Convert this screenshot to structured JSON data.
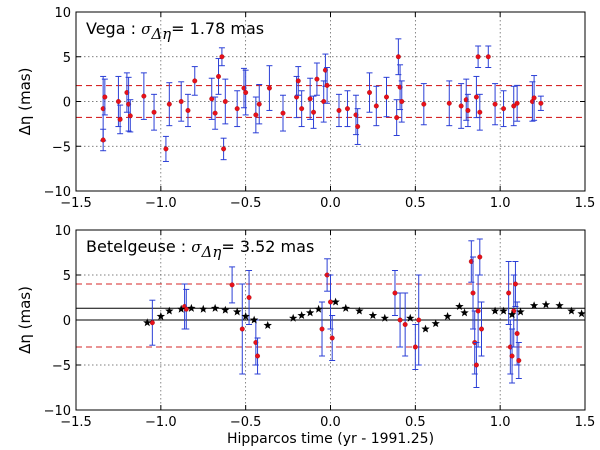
{
  "chart_data": [
    {
      "type": "scatter",
      "panel": "top",
      "annotation": {
        "name": "Vega",
        "colon": ":",
        "sigma": "σ",
        "sub": "Δη",
        "eq": "=",
        "value": "1.78 mas"
      },
      "ylabel": "Δη (mas)",
      "xlabel": "",
      "xlim": [
        -1.5,
        1.5
      ],
      "ylim": [
        -10,
        10
      ],
      "xticks": [
        -1.5,
        -1.0,
        -0.5,
        0.0,
        0.5,
        1.0,
        1.5
      ],
      "yticks": [
        -10,
        -5,
        0,
        5,
        10
      ],
      "xtick_labels": [
        "−1.5",
        "−1.0",
        "−0.5",
        "0.0",
        "0.5",
        "1.0",
        "1.5"
      ],
      "ytick_labels": [
        "−10",
        "−5",
        "0",
        "5",
        "10"
      ],
      "grid": true,
      "hlines_dashed_red": [
        1.78,
        -1.78
      ],
      "hlines_solid_black": [],
      "points": [
        {
          "x": -1.34,
          "y": -0.8,
          "err": 3.6
        },
        {
          "x": -1.34,
          "y": -4.3,
          "err": 1.2
        },
        {
          "x": -1.33,
          "y": 0.5,
          "err": 2.0
        },
        {
          "x": -1.25,
          "y": 0.0,
          "err": 2.8
        },
        {
          "x": -1.24,
          "y": -2.0,
          "err": 1.6
        },
        {
          "x": -1.2,
          "y": 1.0,
          "err": 2.2
        },
        {
          "x": -1.19,
          "y": -0.3,
          "err": 3.0
        },
        {
          "x": -1.18,
          "y": -1.6,
          "err": 1.8
        },
        {
          "x": -1.1,
          "y": 0.6,
          "err": 2.6
        },
        {
          "x": -1.04,
          "y": -1.2,
          "err": 2.0
        },
        {
          "x": -0.97,
          "y": -5.3,
          "err": 1.4
        },
        {
          "x": -0.95,
          "y": -0.3,
          "err": 2.4
        },
        {
          "x": -0.88,
          "y": 0.0,
          "err": 2.2
        },
        {
          "x": -0.84,
          "y": -1.0,
          "err": 1.8
        },
        {
          "x": -0.8,
          "y": 2.3,
          "err": 1.6
        },
        {
          "x": -0.7,
          "y": 0.3,
          "err": 2.3
        },
        {
          "x": -0.68,
          "y": -1.3,
          "err": 1.8
        },
        {
          "x": -0.66,
          "y": 2.8,
          "err": 2.0
        },
        {
          "x": -0.64,
          "y": 5.0,
          "err": 1.0
        },
        {
          "x": -0.63,
          "y": -5.3,
          "err": 1.2
        },
        {
          "x": -0.62,
          "y": 0.0,
          "err": 2.5
        },
        {
          "x": -0.55,
          "y": -0.8,
          "err": 2.0
        },
        {
          "x": -0.51,
          "y": 1.5,
          "err": 2.2
        },
        {
          "x": -0.5,
          "y": 1.0,
          "err": 2.5
        },
        {
          "x": -0.44,
          "y": -1.5,
          "err": 2.0
        },
        {
          "x": -0.42,
          "y": -0.3,
          "err": 2.2
        },
        {
          "x": -0.36,
          "y": 1.5,
          "err": 2.5
        },
        {
          "x": -0.28,
          "y": -1.3,
          "err": 2.0
        },
        {
          "x": -0.2,
          "y": 0.5,
          "err": 2.3
        },
        {
          "x": -0.19,
          "y": 2.3,
          "err": 1.6
        },
        {
          "x": -0.17,
          "y": -0.8,
          "err": 2.0
        },
        {
          "x": -0.12,
          "y": 0.3,
          "err": 2.3
        },
        {
          "x": -0.1,
          "y": -1.2,
          "err": 1.8
        },
        {
          "x": -0.08,
          "y": 2.5,
          "err": 1.8
        },
        {
          "x": -0.04,
          "y": 0.0,
          "err": 2.3
        },
        {
          "x": -0.03,
          "y": 3.5,
          "err": 1.8
        },
        {
          "x": -0.02,
          "y": 1.8,
          "err": 2.0
        },
        {
          "x": 0.05,
          "y": -1.0,
          "err": 1.8
        },
        {
          "x": 0.1,
          "y": -0.8,
          "err": 2.0
        },
        {
          "x": 0.15,
          "y": -1.5,
          "err": 2.2
        },
        {
          "x": 0.16,
          "y": -2.8,
          "err": 2.0
        },
        {
          "x": 0.23,
          "y": 1.0,
          "err": 2.2
        },
        {
          "x": 0.27,
          "y": -0.5,
          "err": 2.2
        },
        {
          "x": 0.33,
          "y": 0.5,
          "err": 2.2
        },
        {
          "x": 0.39,
          "y": -1.8,
          "err": 2.0
        },
        {
          "x": 0.4,
          "y": 5.0,
          "err": 2.0
        },
        {
          "x": 0.41,
          "y": 1.6,
          "err": 2.5
        },
        {
          "x": 0.42,
          "y": 0.0,
          "err": 2.3
        },
        {
          "x": 0.55,
          "y": -0.3,
          "err": 2.3
        },
        {
          "x": 0.7,
          "y": -0.2,
          "err": 2.5
        },
        {
          "x": 0.77,
          "y": -0.5,
          "err": 2.5
        },
        {
          "x": 0.8,
          "y": 0.2,
          "err": 2.3
        },
        {
          "x": 0.81,
          "y": -1.0,
          "err": 1.8
        },
        {
          "x": 0.86,
          "y": 0.5,
          "err": 2.3
        },
        {
          "x": 0.87,
          "y": 5.0,
          "err": 1.2
        },
        {
          "x": 0.88,
          "y": -1.2,
          "err": 2.0
        },
        {
          "x": 0.93,
          "y": 5.0,
          "err": 1.2
        },
        {
          "x": 0.97,
          "y": -0.3,
          "err": 2.3
        },
        {
          "x": 1.02,
          "y": -0.8,
          "err": 2.0
        },
        {
          "x": 1.08,
          "y": -0.5,
          "err": 2.2
        },
        {
          "x": 1.1,
          "y": -0.2,
          "err": 2.0
        },
        {
          "x": 1.19,
          "y": 0.0,
          "err": 2.2
        },
        {
          "x": 1.2,
          "y": 0.4,
          "err": 2.5
        },
        {
          "x": 1.24,
          "y": -0.2,
          "err": 0.8
        }
      ],
      "stars": []
    },
    {
      "type": "scatter",
      "panel": "bottom",
      "annotation": {
        "name": "Betelgeuse",
        "colon": ":",
        "sigma": "σ",
        "sub": "Δη",
        "eq": "=",
        "value": "3.52 mas"
      },
      "ylabel": "Δη (mas)",
      "xlabel": "Hipparcos time (yr - 1991.25)",
      "xlim": [
        -1.5,
        1.5
      ],
      "ylim": [
        -10,
        10
      ],
      "xticks": [
        -1.5,
        -1.0,
        -0.5,
        0.0,
        0.5,
        1.0,
        1.5
      ],
      "yticks": [
        -10,
        -5,
        0,
        5,
        10
      ],
      "xtick_labels": [
        "−1.5",
        "−1.0",
        "−0.5",
        "0.0",
        "0.5",
        "1.0",
        "1.5"
      ],
      "ytick_labels": [
        "−10",
        "−5",
        "0",
        "5",
        "10"
      ],
      "grid": true,
      "hlines_dashed_red": [
        4.0,
        -3.0
      ],
      "hlines_solid_black": [
        1.3,
        0.0
      ],
      "points": [
        {
          "x": -1.05,
          "y": -0.3,
          "err": 2.5
        },
        {
          "x": -0.86,
          "y": 1.5,
          "err": 2.5
        },
        {
          "x": -0.85,
          "y": 1.2,
          "err": 2.2
        },
        {
          "x": -0.58,
          "y": 3.9,
          "err": 2.0
        },
        {
          "x": -0.52,
          "y": -1.0,
          "err": 5.0
        },
        {
          "x": -0.48,
          "y": 2.5,
          "err": 3.0
        },
        {
          "x": -0.44,
          "y": -2.5,
          "err": 2.5
        },
        {
          "x": -0.43,
          "y": -4.0,
          "err": 2.0
        },
        {
          "x": -0.05,
          "y": -1.0,
          "err": 3.0
        },
        {
          "x": -0.02,
          "y": 5.0,
          "err": 1.8
        },
        {
          "x": 0.0,
          "y": 2.0,
          "err": 3.0
        },
        {
          "x": 0.01,
          "y": -2.0,
          "err": 2.5
        },
        {
          "x": 0.38,
          "y": 3.0,
          "err": 2.5
        },
        {
          "x": 0.41,
          "y": 0.0,
          "err": 3.0
        },
        {
          "x": 0.44,
          "y": -0.5,
          "err": 3.5
        },
        {
          "x": 0.5,
          "y": -3.0,
          "err": 2.5
        },
        {
          "x": 0.52,
          "y": 0.0,
          "err": 5.0
        },
        {
          "x": 0.83,
          "y": 6.5,
          "err": 2.3
        },
        {
          "x": 0.84,
          "y": 3.0,
          "err": 4.0
        },
        {
          "x": 0.85,
          "y": -2.5,
          "err": 3.5
        },
        {
          "x": 0.86,
          "y": -5.0,
          "err": 2.5
        },
        {
          "x": 0.87,
          "y": 1.0,
          "err": 4.0
        },
        {
          "x": 0.88,
          "y": 7.0,
          "err": 2.0
        },
        {
          "x": 0.89,
          "y": -1.0,
          "err": 3.0
        },
        {
          "x": 1.05,
          "y": 3.0,
          "err": 3.5
        },
        {
          "x": 1.06,
          "y": -3.0,
          "err": 3.0
        },
        {
          "x": 1.07,
          "y": -4.0,
          "err": 3.0
        },
        {
          "x": 1.08,
          "y": 1.0,
          "err": 4.0
        },
        {
          "x": 1.09,
          "y": 4.0,
          "err": 2.5
        },
        {
          "x": 1.1,
          "y": -1.5,
          "err": 3.5
        },
        {
          "x": 1.11,
          "y": -4.5,
          "err": 2.0
        }
      ],
      "stars": [
        {
          "x": -1.08,
          "y": -0.3
        },
        {
          "x": -1.0,
          "y": 0.4
        },
        {
          "x": -0.95,
          "y": 1.0
        },
        {
          "x": -0.88,
          "y": 1.2
        },
        {
          "x": -0.82,
          "y": 1.3
        },
        {
          "x": -0.75,
          "y": 1.2
        },
        {
          "x": -0.68,
          "y": 1.3
        },
        {
          "x": -0.62,
          "y": 1.1
        },
        {
          "x": -0.55,
          "y": 0.9
        },
        {
          "x": -0.5,
          "y": 0.4
        },
        {
          "x": -0.45,
          "y": 0.0
        },
        {
          "x": -0.37,
          "y": -0.6
        },
        {
          "x": -0.22,
          "y": 0.2
        },
        {
          "x": -0.17,
          "y": 0.5
        },
        {
          "x": -0.12,
          "y": 0.8
        },
        {
          "x": -0.07,
          "y": 1.2
        },
        {
          "x": 0.03,
          "y": 2.0
        },
        {
          "x": 0.09,
          "y": 1.3
        },
        {
          "x": 0.17,
          "y": 1.0
        },
        {
          "x": 0.25,
          "y": 0.5
        },
        {
          "x": 0.32,
          "y": 0.2
        },
        {
          "x": 0.47,
          "y": 0.2
        },
        {
          "x": 0.56,
          "y": -1.0
        },
        {
          "x": 0.62,
          "y": -0.4
        },
        {
          "x": 0.69,
          "y": 0.4
        },
        {
          "x": 0.76,
          "y": 1.5
        },
        {
          "x": 0.79,
          "y": 0.8
        },
        {
          "x": 0.97,
          "y": 1.0
        },
        {
          "x": 1.02,
          "y": 1.0
        },
        {
          "x": 1.07,
          "y": 0.6
        },
        {
          "x": 1.12,
          "y": 0.9
        },
        {
          "x": 1.2,
          "y": 1.6
        },
        {
          "x": 1.27,
          "y": 1.7
        },
        {
          "x": 1.35,
          "y": 1.6
        },
        {
          "x": 1.42,
          "y": 1.0
        },
        {
          "x": 1.48,
          "y": 0.7
        }
      ]
    }
  ]
}
